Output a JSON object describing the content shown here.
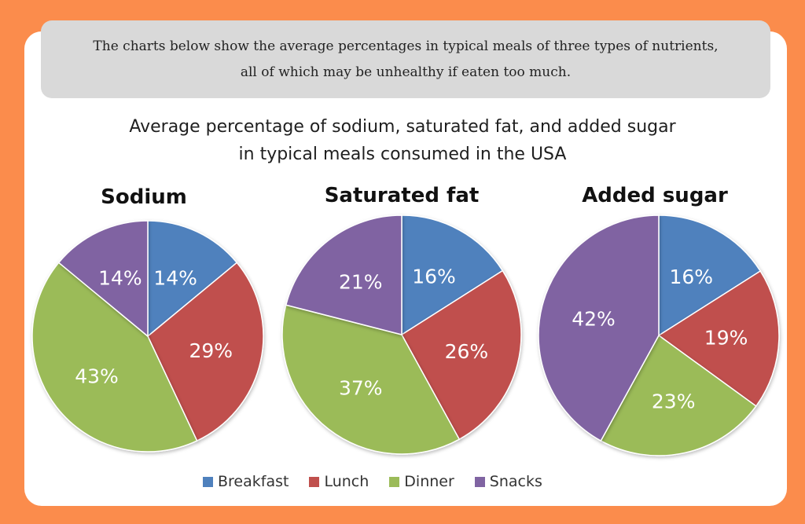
{
  "intro": {
    "line1": "The charts below show the average percentages in typical meals of three types of nutrients,",
    "line2": "all of which may be unhealthy if eaten too much."
  },
  "chart_data": {
    "type": "pie",
    "title_line1": "Average percentage of sodium, saturated fat, and added sugar",
    "title_line2": "in typical meals consumed in the USA",
    "categories": [
      "Breakfast",
      "Lunch",
      "Dinner",
      "Snacks"
    ],
    "colors": {
      "Breakfast": "#4f81bd",
      "Lunch": "#c0504d",
      "Dinner": "#9bbb59",
      "Snacks": "#8064a2"
    },
    "series": [
      {
        "name": "Sodium",
        "values": [
          14,
          29,
          43,
          14
        ],
        "labels": [
          "14%",
          "29%",
          "43%",
          "14%"
        ]
      },
      {
        "name": "Saturated fat",
        "values": [
          16,
          26,
          37,
          21
        ],
        "labels": [
          "16%",
          "26%",
          "37%",
          "21%"
        ]
      },
      {
        "name": "Added sugar",
        "values": [
          16,
          19,
          23,
          42
        ],
        "labels": [
          "16%",
          "19%",
          "23%",
          "42%"
        ]
      }
    ],
    "legend": [
      "Breakfast",
      "Lunch",
      "Dinner",
      "Snacks"
    ]
  }
}
